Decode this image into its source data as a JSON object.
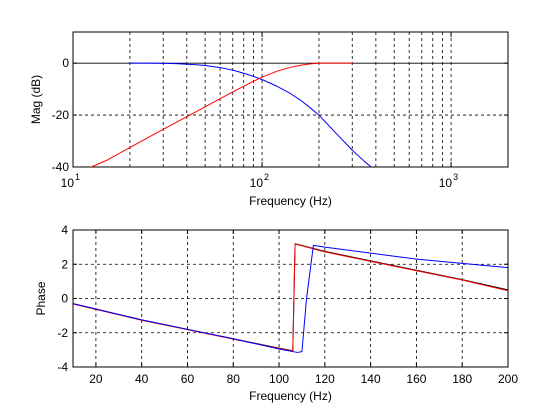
{
  "chart_data": [
    {
      "type": "line",
      "x_scale": "log",
      "xlim": [
        10,
        2000
      ],
      "ylim": [
        -40,
        12
      ],
      "xlabel": "Frequency (Hz)",
      "ylabel": "Mag (dB)",
      "grid": true,
      "x_ticks": [
        {
          "base": "10",
          "exp": "1"
        },
        {
          "base": "10",
          "exp": "2"
        },
        {
          "base": "10",
          "exp": "3"
        }
      ],
      "y_ticks": [
        {
          "value": -40,
          "label": "-40"
        },
        {
          "value": -20,
          "label": "-20"
        },
        {
          "value": 0,
          "label": "0"
        }
      ],
      "series": [
        {
          "color": "#0000ff",
          "x": [
            20,
            25,
            30,
            35,
            40,
            45,
            50,
            60,
            70,
            80,
            90,
            100,
            120,
            140,
            160,
            180,
            200,
            250,
            300,
            350,
            400
          ],
          "y": [
            0,
            0,
            -0.1,
            -0.2,
            -0.4,
            -0.6,
            -0.9,
            -1.7,
            -2.7,
            -3.9,
            -5.1,
            -6.3,
            -8.9,
            -11.5,
            -14.3,
            -17.2,
            -20,
            -27.5,
            -33.5,
            -38,
            -41.5
          ]
        },
        {
          "color": "#ff0000",
          "x": [
            10,
            12.5,
            15,
            20,
            25,
            30,
            40,
            50,
            60,
            70,
            80,
            90,
            100,
            120,
            140,
            160,
            180,
            200,
            250,
            300
          ],
          "y": [
            -43,
            -40,
            -37.5,
            -32.5,
            -28.6,
            -25.5,
            -20.6,
            -16.8,
            -13.7,
            -11.1,
            -8.9,
            -7,
            -5.4,
            -3.1,
            -1.7,
            -0.8,
            -0.3,
            0,
            0,
            0
          ]
        }
      ]
    },
    {
      "type": "line",
      "xlim": [
        10,
        200
      ],
      "ylim": [
        -4,
        4
      ],
      "xlabel": "Frequency (Hz)",
      "ylabel": "Phase",
      "grid": true,
      "x_ticks": [
        {
          "value": 20,
          "label": "20"
        },
        {
          "value": 40,
          "label": "40"
        },
        {
          "value": 60,
          "label": "60"
        },
        {
          "value": 80,
          "label": "80"
        },
        {
          "value": 100,
          "label": "100"
        },
        {
          "value": 120,
          "label": "120"
        },
        {
          "value": 140,
          "label": "140"
        },
        {
          "value": 160,
          "label": "160"
        },
        {
          "value": 180,
          "label": "180"
        },
        {
          "value": 200,
          "label": "200"
        }
      ],
      "y_ticks": [
        {
          "value": -4,
          "label": "-4"
        },
        {
          "value": -2,
          "label": "-2"
        },
        {
          "value": 0,
          "label": "0"
        },
        {
          "value": 2,
          "label": "2"
        },
        {
          "value": 4,
          "label": "4"
        }
      ],
      "series": [
        {
          "color": "#000000",
          "x": [
            10,
            40,
            60,
            80,
            100,
            106,
            107,
            120,
            140,
            160,
            180,
            200
          ],
          "y": [
            -0.3,
            -1.25,
            -1.8,
            -2.35,
            -2.9,
            -3.05,
            3.2,
            2.75,
            2.2,
            1.65,
            1.1,
            0.5
          ]
        },
        {
          "color": "#ff0000",
          "x": [
            10,
            40,
            60,
            80,
            100,
            106,
            107,
            120,
            140,
            160,
            180,
            200
          ],
          "y": [
            -0.32,
            -1.27,
            -1.82,
            -2.37,
            -2.92,
            -3.07,
            3.18,
            2.72,
            2.17,
            1.62,
            1.08,
            0.45
          ]
        },
        {
          "color": "#0000ff",
          "x": [
            10,
            40,
            60,
            80,
            100,
            108,
            110,
            112,
            115,
            120,
            140,
            160,
            180,
            200
          ],
          "y": [
            -0.3,
            -1.25,
            -1.8,
            -2.35,
            -2.95,
            -3.15,
            -3.1,
            0,
            3.1,
            3.0,
            2.65,
            2.3,
            2.05,
            1.8
          ]
        }
      ]
    }
  ]
}
